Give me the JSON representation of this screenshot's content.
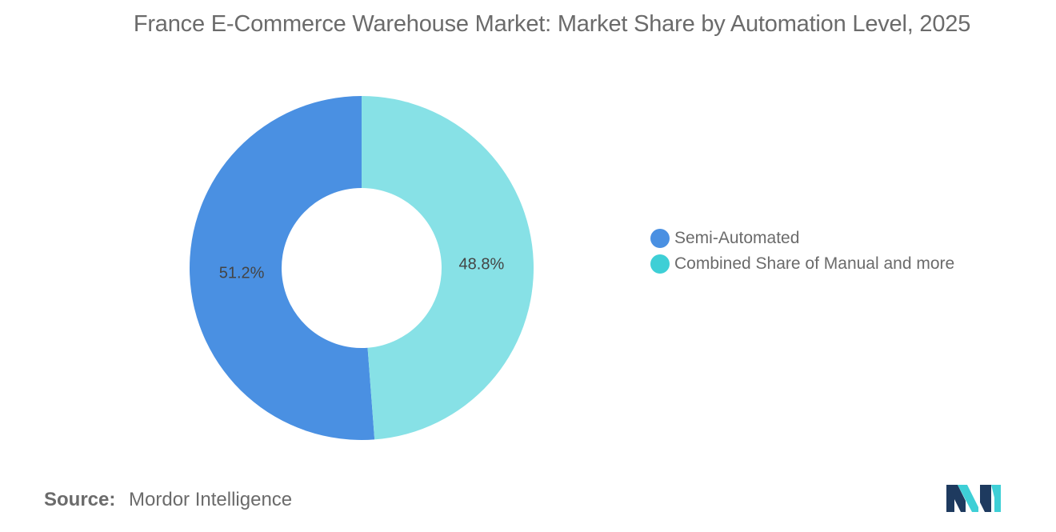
{
  "chart_data": {
    "type": "pie",
    "title": "France E-Commerce Warehouse Market: Market Share by Automation Level, 2025",
    "slices": [
      {
        "label": "Semi-Automated",
        "value": 51.2,
        "value_label": "51.2%",
        "color": "#4a90e2"
      },
      {
        "label": "Combined Share of Manual and more",
        "value": 48.8,
        "value_label": "48.8%",
        "color": "#87e1e6"
      }
    ],
    "legend_colors": [
      "#4a90e2",
      "#3ecfd6"
    ],
    "legend_position": "right",
    "donut": true
  },
  "footer": {
    "source_label": "Source:",
    "source_value": "Mordor Intelligence"
  },
  "logo": {
    "icon": "mordor-intelligence-logo-icon",
    "colors": [
      "#1e3a5f",
      "#3ecfd6"
    ]
  }
}
